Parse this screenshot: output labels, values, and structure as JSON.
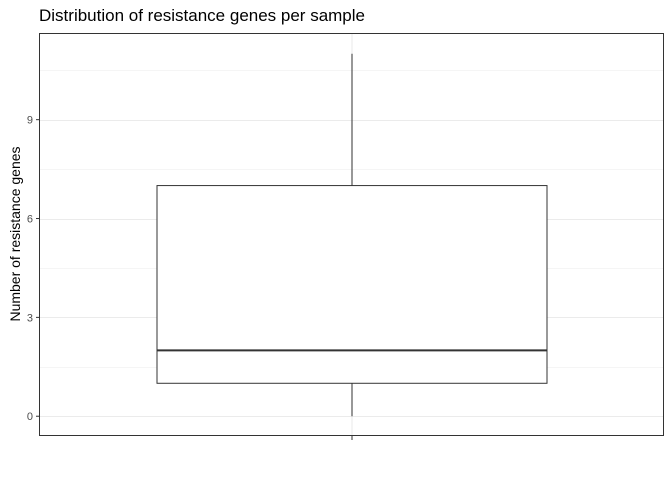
{
  "chart_data": {
    "type": "boxplot",
    "title": "Distribution of resistance genes per sample",
    "xlabel": "",
    "ylabel": "Number of resistance genes",
    "ylim": [
      -0.6,
      11.6
    ],
    "yticks": [
      0,
      3,
      6,
      9
    ],
    "y_minor_ticks": [
      1.5,
      4.5,
      7.5,
      10.5
    ],
    "grid": true,
    "legend": "none",
    "box": {
      "min": 0,
      "q1": 1,
      "median": 2,
      "q3": 7,
      "max": 11
    },
    "colors": {
      "box_fill": "#ffffff",
      "box_stroke": "#333333",
      "grid": "#ebebeb",
      "panel_border": "#333333",
      "axis_text": "#4d4d4d"
    }
  }
}
